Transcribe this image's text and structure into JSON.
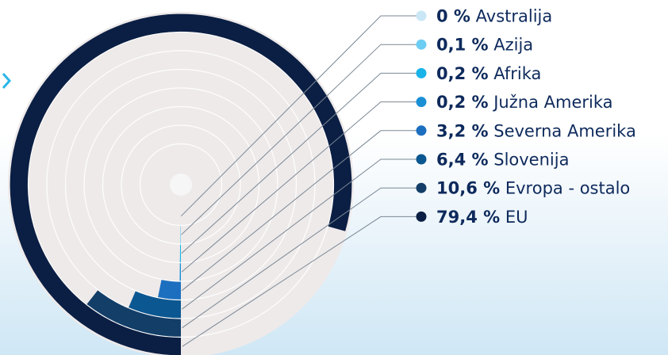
{
  "colors": {
    "disc": "#eeeaea",
    "ring_line": "#ffffff",
    "center_dot": "#f6f6f6",
    "leader": "#7a8794",
    "text": "#0e2a5c",
    "pct": "#0e2a5c",
    "arrow": "#29b6e8"
  },
  "chart_data": {
    "type": "radial-bar",
    "unit": "%",
    "max": 100,
    "series": [
      {
        "pct": "0 %",
        "name": "Avstralija",
        "value": 0.0,
        "color": "#c9e7f6"
      },
      {
        "pct": "0,1 %",
        "name": "Azija",
        "value": 0.1,
        "color": "#6ccdf2"
      },
      {
        "pct": "0,2 %",
        "name": "Afrika",
        "value": 0.2,
        "color": "#19b3e9"
      },
      {
        "pct": "0,2 %",
        "name": "Južna Amerika",
        "value": 0.2,
        "color": "#1a8fd6"
      },
      {
        "pct": "3,2 %",
        "name": "Severna Amerika",
        "value": 3.2,
        "color": "#1c6fbf"
      },
      {
        "pct": "6,4 %",
        "name": "Slovenija",
        "value": 6.4,
        "color": "#0b5791"
      },
      {
        "pct": "10,6 %",
        "name": "Evropa - ostalo",
        "value": 10.6,
        "color": "#123e68"
      },
      {
        "pct": "79,4 %",
        "name": "EU",
        "value": 79.4,
        "color": "#0b1f44"
      }
    ]
  }
}
